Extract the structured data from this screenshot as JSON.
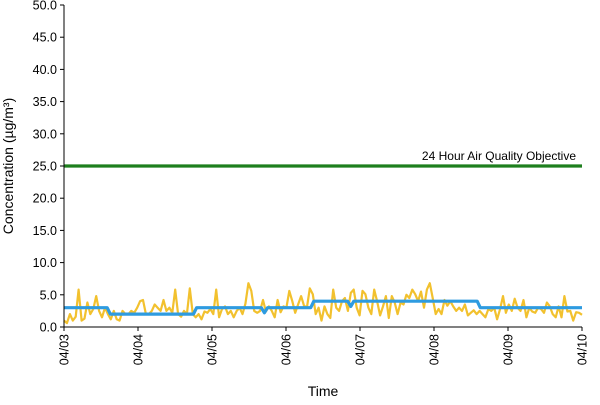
{
  "chart_data": {
    "type": "line",
    "title": "",
    "xlabel": "Time",
    "ylabel": "Concentration (µg/m³)",
    "ylim": [
      0,
      50
    ],
    "yticks": [
      "0.0",
      "5.0",
      "10.0",
      "15.0",
      "20.0",
      "25.0",
      "30.0",
      "35.0",
      "40.0",
      "45.0",
      "50.0"
    ],
    "xlim": [
      "04/03",
      "04/10"
    ],
    "xticks": [
      "04/03",
      "04/04",
      "04/05",
      "04/06",
      "04/07",
      "04/08",
      "04/09",
      "04/10"
    ],
    "grid": false,
    "legend": "none",
    "annotations": [
      {
        "text": "24 Hour Air Quality Objective",
        "y": 25
      }
    ],
    "series": [
      {
        "role": "hourly",
        "color": "#f2c12e",
        "x_start": "04/03",
        "x_end": "04/10",
        "values": [
          1,
          0.6,
          2,
          1,
          1.6,
          5.8,
          1,
          1.3,
          3.8,
          2,
          2.8,
          4.8,
          2.5,
          1.5,
          3,
          2,
          1.2,
          2.5,
          1.2,
          1,
          2.5,
          2,
          2,
          2.5,
          2.2,
          3,
          4,
          4.2,
          2,
          2,
          2.5,
          3.5,
          3,
          2.5,
          4.2,
          2.5,
          3,
          2.2,
          5.8,
          2,
          1.6,
          2.5,
          2,
          6,
          2,
          1.5,
          2,
          1.2,
          2.4,
          2.2,
          2.8,
          2,
          5.8,
          1.5,
          2.8,
          3.2,
          2,
          2.5,
          1.5,
          2.5,
          3,
          2,
          3.6,
          6.8,
          5.6,
          2.5,
          2.2,
          2.5,
          4.2,
          2.4,
          3.2,
          2.5,
          1.5,
          4.2,
          2.3,
          3.2,
          3,
          5.6,
          4,
          2.2,
          3.5,
          4.8,
          3.3,
          3,
          6,
          5.1,
          2,
          3,
          1,
          3.2,
          2,
          1.4,
          5.8,
          3,
          2.5,
          4,
          4.5,
          2.5,
          5.3,
          5.8,
          3,
          1.8,
          5.6,
          5.1,
          3,
          2,
          5.8,
          4,
          1.8,
          3.2,
          4.8,
          1.4,
          4.8,
          3.8,
          2,
          3.8,
          3.5,
          5,
          4.5,
          5.8,
          5.1,
          4,
          5.5,
          3,
          5.8,
          6.8,
          4.5,
          2,
          2.8,
          2,
          4.2,
          3.3,
          4,
          3.2,
          2.5,
          3,
          2.5,
          3.5,
          1.8,
          2.2,
          2.6,
          2,
          2.5,
          2,
          1.5,
          2.8,
          2.5,
          3,
          1.2,
          2.8,
          4.8,
          2.2,
          3.5,
          2.5,
          4.4,
          3,
          2.5,
          4.2,
          1.5,
          3,
          2.4,
          2.2,
          3,
          2.8,
          2.2,
          3.8,
          3.2,
          2,
          1.5,
          3.2,
          1.5,
          4.8,
          2.4,
          2.5,
          1,
          2.3,
          2.2,
          1.9
        ]
      },
      {
        "role": "24-hour average",
        "color": "#2e9be0",
        "points": [
          {
            "x": "04/03 00:00",
            "y": 3
          },
          {
            "x": "04/03 14:00",
            "y": 3
          },
          {
            "x": "04/03 15:00",
            "y": 2
          },
          {
            "x": "04/04 18:00",
            "y": 2
          },
          {
            "x": "04/04 19:00",
            "y": 3
          },
          {
            "x": "04/05 16:00",
            "y": 3
          },
          {
            "x": "04/05 17:00",
            "y": 2.2
          },
          {
            "x": "04/05 18:00",
            "y": 3
          },
          {
            "x": "04/06 08:00",
            "y": 3
          },
          {
            "x": "04/06 09:00",
            "y": 4
          },
          {
            "x": "04/06 20:00",
            "y": 4
          },
          {
            "x": "04/06 21:00",
            "y": 3.2
          },
          {
            "x": "04/06 22:00",
            "y": 4
          },
          {
            "x": "04/08 14:00",
            "y": 4
          },
          {
            "x": "04/08 15:00",
            "y": 3
          },
          {
            "x": "04/10 00:00",
            "y": 3
          }
        ]
      },
      {
        "role": "objective",
        "color": "#1e7f1e",
        "points": [
          {
            "x": "04/03 00:00",
            "y": 25
          },
          {
            "x": "04/10 00:00",
            "y": 25
          }
        ]
      }
    ]
  }
}
